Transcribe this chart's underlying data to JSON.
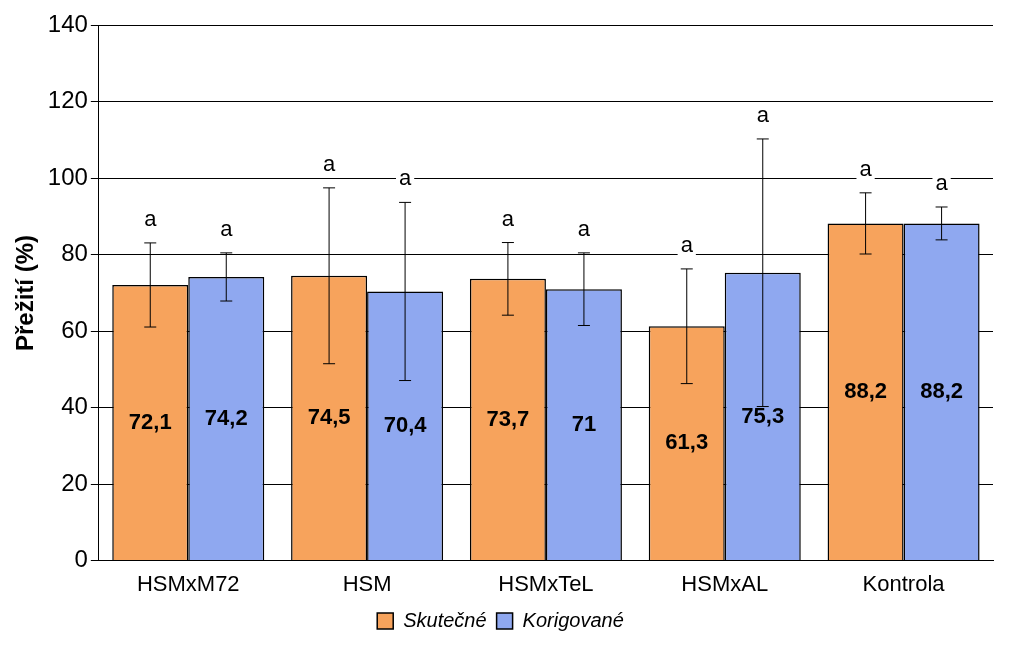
{
  "chart_data": {
    "type": "bar",
    "ylabel": "Přežití (%)",
    "categories": [
      "HSMxM72",
      "HSM",
      "HSMxTeL",
      "HSMxAL",
      "Kontrola"
    ],
    "series": [
      {
        "name": "Skutečné",
        "color": "#f7a35c",
        "values": [
          72.1,
          74.5,
          73.7,
          61.3,
          88.2
        ],
        "errors": [
          11,
          23,
          9.5,
          15,
          8
        ],
        "value_labels": [
          "72,1",
          "74,5",
          "73,7",
          "61,3",
          "88,2"
        ]
      },
      {
        "name": "Korigované",
        "color": "#8fa8f0",
        "values": [
          74.2,
          70.4,
          71,
          75.3,
          88.2
        ],
        "errors": [
          6.3,
          23.3,
          9.5,
          35,
          4.3
        ],
        "value_labels": [
          "74,2",
          "70,4",
          "71",
          "75,3",
          "88,2"
        ]
      }
    ],
    "ylim": [
      0,
      140
    ],
    "yticks": [
      0,
      20,
      40,
      60,
      80,
      100,
      120,
      140
    ],
    "grid": "y",
    "legend": "bottom",
    "annotations": [
      "a",
      "a",
      "a",
      "a",
      "a",
      "a",
      "a",
      "a",
      "a",
      "a"
    ]
  }
}
